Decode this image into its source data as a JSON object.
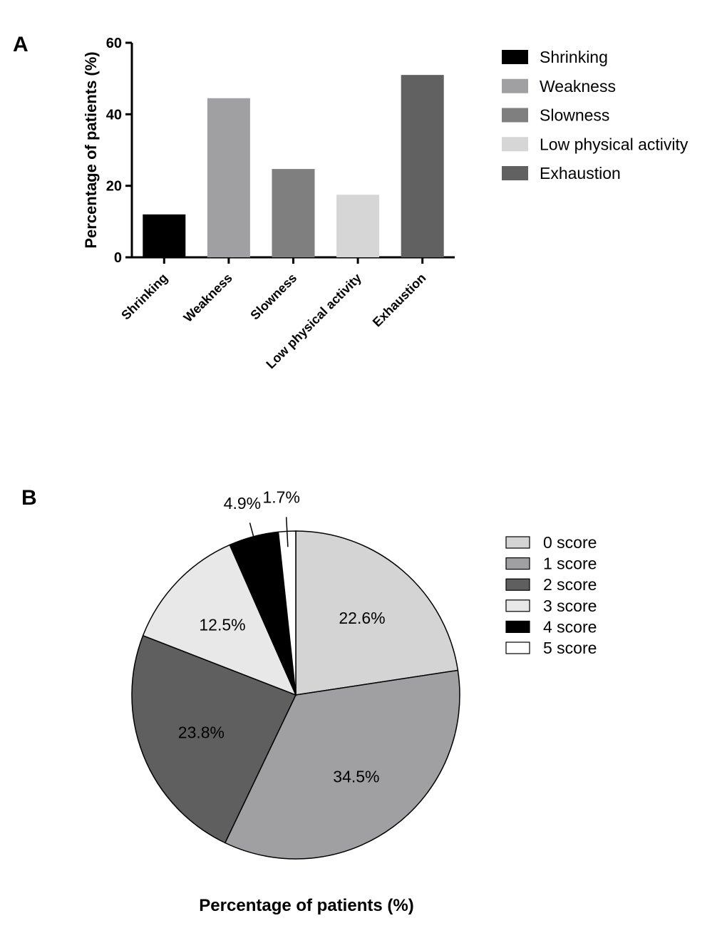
{
  "chart_data": [
    {
      "panel": "A",
      "type": "bar",
      "categories": [
        "Shrinking",
        "Weakness",
        "Slowness",
        "Low physical activity",
        "Exhaustion"
      ],
      "values": [
        12.0,
        44.5,
        24.7,
        17.5,
        51.0
      ],
      "colors": [
        "#000000",
        "#a0a0a3",
        "#7f7f7f",
        "#d6d6d6",
        "#616161"
      ],
      "ylabel": "Percentage of patients  (%)",
      "xlabel": "",
      "ylim": [
        0,
        60
      ],
      "yticks": [
        0,
        20,
        40,
        60
      ],
      "legend": {
        "position": "top-right",
        "entries": [
          "Shrinking",
          "Weakness",
          "Slowness",
          "Low physical activity",
          "Exhaustion"
        ]
      }
    },
    {
      "panel": "B",
      "type": "pie",
      "labels": [
        "0 score",
        "1 score",
        "2 score",
        "3 score",
        "4 score",
        "5 score"
      ],
      "values": [
        22.6,
        34.5,
        23.8,
        12.5,
        4.9,
        1.7
      ],
      "value_labels": [
        "22.6%",
        "34.5%",
        "23.8%",
        "12.5%",
        "4.9%",
        "1.7%"
      ],
      "colors": [
        "#d4d4d4",
        "#a0a0a3",
        "#5f5f5f",
        "#e8e8e8",
        "#000000",
        "#ffffff"
      ],
      "xlabel": "Percentage of patients (%)",
      "legend": {
        "position": "right",
        "entries": [
          "0 score",
          "1 score",
          "2 score",
          "3 score",
          "4 score",
          "5 score"
        ]
      }
    }
  ]
}
